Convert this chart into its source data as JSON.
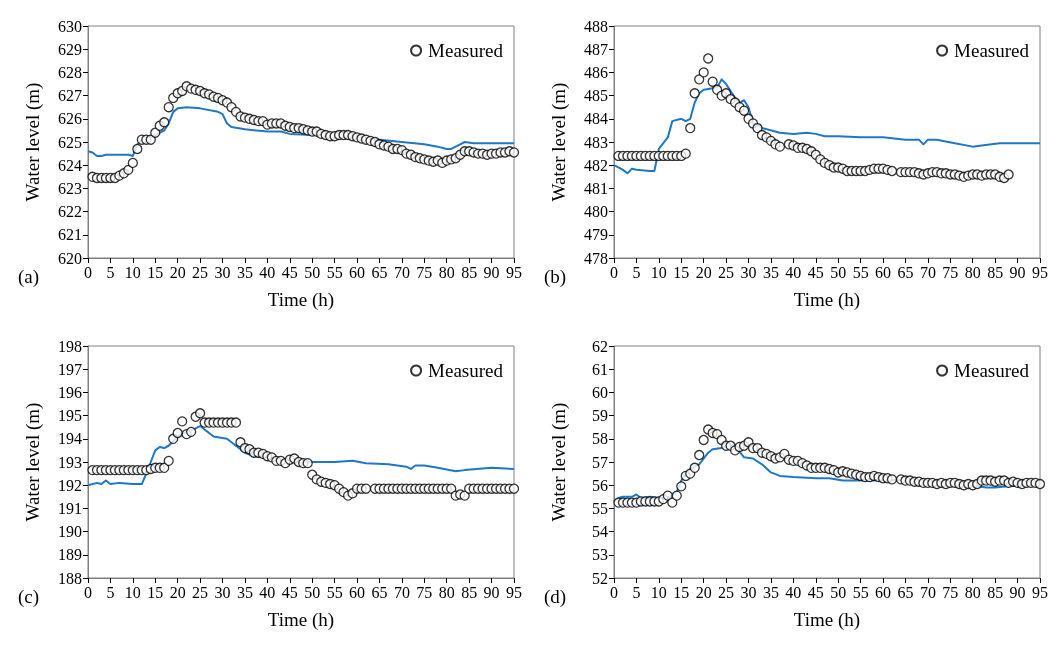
{
  "chart_data": [
    {
      "type": "line",
      "xlabel": "Time (h)",
      "ylabel": "Water level (m)",
      "annotations": [
        "(a)"
      ],
      "xlim": [
        0,
        95
      ],
      "xticks": [
        0,
        5,
        10,
        15,
        20,
        25,
        30,
        35,
        40,
        45,
        50,
        55,
        60,
        65,
        70,
        75,
        80,
        85,
        90,
        95
      ],
      "ylim": [
        620,
        630
      ],
      "yticks": [
        620,
        621,
        622,
        623,
        624,
        625,
        626,
        627,
        628,
        629,
        630
      ],
      "legend": "top right",
      "grid": false,
      "series": [
        {
          "name": "Measured",
          "type": "scatter",
          "marker": "circle",
          "color": "#000000",
          "x": [
            1,
            2,
            3,
            4,
            5,
            6,
            7,
            8,
            9,
            10,
            11,
            12,
            13,
            14,
            15,
            16,
            17,
            18,
            19,
            20,
            21,
            22,
            23,
            24,
            25,
            26,
            27,
            28,
            29,
            30,
            31,
            32,
            33,
            34,
            35,
            36,
            37,
            38,
            39,
            40,
            41,
            42,
            43,
            44,
            45,
            46,
            47,
            48,
            49,
            50,
            51,
            52,
            53,
            54,
            55,
            56,
            57,
            58,
            59,
            60,
            61,
            62,
            63,
            64,
            65,
            66,
            67,
            68,
            69,
            70,
            71,
            72,
            73,
            74,
            75,
            76,
            77,
            78,
            79,
            80,
            81,
            82,
            83,
            84,
            85,
            86,
            87,
            88,
            89,
            90,
            91,
            92,
            93,
            94,
            95
          ],
          "values": [
            623.5,
            623.45,
            623.45,
            623.45,
            623.45,
            623.45,
            623.55,
            623.65,
            623.8,
            624.1,
            624.7,
            625.1,
            625.1,
            625.1,
            625.4,
            625.7,
            625.85,
            626.5,
            626.9,
            627.1,
            627.2,
            627.4,
            627.3,
            627.25,
            627.2,
            627.1,
            627.05,
            626.95,
            626.9,
            626.8,
            626.7,
            626.5,
            626.3,
            626.1,
            626.05,
            626.0,
            625.95,
            625.9,
            625.9,
            625.75,
            625.8,
            625.8,
            625.8,
            625.7,
            625.65,
            625.6,
            625.6,
            625.55,
            625.5,
            625.45,
            625.45,
            625.35,
            625.3,
            625.25,
            625.25,
            625.3,
            625.3,
            625.3,
            625.25,
            625.2,
            625.15,
            625.1,
            625.05,
            625.0,
            624.9,
            624.85,
            624.8,
            624.7,
            624.7,
            624.65,
            624.5,
            624.45,
            624.35,
            624.3,
            624.25,
            624.2,
            624.15,
            624.2,
            624.1,
            624.2,
            624.25,
            624.3,
            624.45,
            624.6,
            624.6,
            624.55,
            624.5,
            624.5,
            624.45,
            624.5,
            624.5,
            624.55,
            624.55,
            624.6,
            624.55
          ]
        },
        {
          "type": "line",
          "marker": "none",
          "line_style": "solid",
          "color": "#1f77c8",
          "x": [
            0,
            1,
            2,
            3,
            4,
            9,
            10,
            11,
            12,
            15,
            17,
            18,
            19,
            20,
            22,
            25,
            29,
            30,
            31,
            32,
            35,
            40,
            43,
            45,
            50,
            55,
            60,
            65,
            70,
            75,
            78,
            80,
            81,
            83,
            84,
            86,
            95
          ],
          "values": [
            624.6,
            624.55,
            624.4,
            624.4,
            624.45,
            624.45,
            624.4,
            624.9,
            625.1,
            625.3,
            625.5,
            625.8,
            626.3,
            626.45,
            626.5,
            626.45,
            626.3,
            626.2,
            625.8,
            625.65,
            625.55,
            625.45,
            625.45,
            625.35,
            625.3,
            625.25,
            625.2,
            625.1,
            625.0,
            624.9,
            624.8,
            624.7,
            624.7,
            624.9,
            625.0,
            624.95,
            624.95
          ]
        }
      ]
    },
    {
      "type": "line",
      "xlabel": "Time (h)",
      "ylabel": "Water level (m)",
      "annotations": [
        "(b)"
      ],
      "xlim": [
        0,
        95
      ],
      "xticks": [
        0,
        5,
        10,
        15,
        20,
        25,
        30,
        35,
        40,
        45,
        50,
        55,
        60,
        65,
        70,
        75,
        80,
        85,
        90,
        95
      ],
      "ylim": [
        478,
        488
      ],
      "yticks": [
        478,
        479,
        480,
        481,
        482,
        483,
        484,
        485,
        486,
        487,
        488
      ],
      "legend": "top right",
      "grid": false,
      "series": [
        {
          "name": "Measured",
          "type": "scatter",
          "marker": "circle",
          "color": "#000000",
          "x": [
            1,
            2,
            3,
            4,
            5,
            6,
            7,
            8,
            9,
            10,
            11,
            12,
            13,
            14,
            15,
            16,
            17,
            18,
            19,
            20,
            21,
            22,
            23,
            24,
            25,
            26,
            27,
            28,
            29,
            30,
            31,
            32,
            33,
            34,
            35,
            36,
            37,
            39,
            40,
            41,
            42,
            43,
            44,
            45,
            46,
            47,
            48,
            49,
            50,
            51,
            52,
            53,
            54,
            55,
            56,
            57,
            58,
            59,
            60,
            61,
            62,
            64,
            65,
            66,
            67,
            68,
            69,
            70,
            71,
            72,
            73,
            74,
            75,
            76,
            77,
            78,
            79,
            80,
            81,
            82,
            83,
            84,
            85,
            86,
            87,
            88
          ],
          "values": [
            482.4,
            482.4,
            482.4,
            482.4,
            482.4,
            482.4,
            482.4,
            482.4,
            482.4,
            482.4,
            482.4,
            482.4,
            482.4,
            482.4,
            482.4,
            482.5,
            483.6,
            485.1,
            485.7,
            486.0,
            486.6,
            485.6,
            485.25,
            485.0,
            485.1,
            484.85,
            484.7,
            484.5,
            484.35,
            484.0,
            483.8,
            483.6,
            483.3,
            483.2,
            483.05,
            482.9,
            482.8,
            482.9,
            482.85,
            482.75,
            482.75,
            482.7,
            482.6,
            482.45,
            482.25,
            482.1,
            482.0,
            481.9,
            481.9,
            481.85,
            481.75,
            481.75,
            481.75,
            481.75,
            481.75,
            481.8,
            481.85,
            481.85,
            481.85,
            481.8,
            481.75,
            481.7,
            481.7,
            481.7,
            481.7,
            481.65,
            481.6,
            481.65,
            481.7,
            481.7,
            481.65,
            481.65,
            481.6,
            481.6,
            481.55,
            481.5,
            481.55,
            481.6,
            481.6,
            481.55,
            481.6,
            481.6,
            481.6,
            481.5,
            481.45,
            481.6
          ]
        },
        {
          "type": "line",
          "marker": "none",
          "line_style": "solid",
          "color": "#1f77c8",
          "x": [
            0,
            2,
            3,
            4,
            5,
            8,
            9,
            10,
            12,
            13,
            15,
            16,
            17,
            18,
            19,
            20,
            23,
            24,
            25,
            27,
            28,
            29,
            30,
            31,
            32,
            33,
            37,
            40,
            43,
            45,
            47,
            50,
            55,
            60,
            65,
            68,
            69,
            70,
            72,
            76,
            80,
            82,
            86,
            88,
            95
          ],
          "values": [
            482.0,
            481.8,
            481.65,
            481.85,
            481.8,
            481.75,
            481.75,
            482.7,
            483.2,
            483.9,
            484.0,
            483.9,
            484.0,
            484.7,
            485.1,
            485.25,
            485.35,
            485.7,
            485.5,
            484.9,
            484.7,
            484.8,
            484.5,
            483.8,
            483.75,
            483.6,
            483.4,
            483.35,
            483.4,
            483.35,
            483.25,
            483.25,
            483.2,
            483.2,
            483.1,
            483.1,
            482.9,
            483.1,
            483.1,
            482.95,
            482.8,
            482.85,
            482.95,
            482.95,
            482.95
          ]
        }
      ]
    },
    {
      "type": "line",
      "xlabel": "Time (h)",
      "ylabel": "Water level (m)",
      "annotations": [
        "(c)"
      ],
      "xlim": [
        0,
        95
      ],
      "xticks": [
        0,
        5,
        10,
        15,
        20,
        25,
        30,
        35,
        40,
        45,
        50,
        55,
        60,
        65,
        70,
        75,
        80,
        85,
        90,
        95
      ],
      "ylim": [
        188,
        198
      ],
      "yticks": [
        188,
        189,
        190,
        191,
        192,
        193,
        194,
        195,
        196,
        197,
        198
      ],
      "legend": "top right",
      "grid": false,
      "series": [
        {
          "name": "Measured",
          "type": "scatter",
          "marker": "circle",
          "color": "#000000",
          "x": [
            1,
            2,
            3,
            4,
            5,
            6,
            7,
            8,
            9,
            10,
            11,
            12,
            13,
            14,
            15,
            16,
            17,
            18,
            19,
            20,
            21,
            22,
            23,
            24,
            25,
            26,
            27,
            28,
            29,
            30,
            31,
            32,
            33,
            34,
            35,
            36,
            37,
            38,
            39,
            40,
            41,
            42,
            43,
            44,
            45,
            46,
            47,
            48,
            49,
            50,
            51,
            52,
            53,
            54,
            55,
            56,
            57,
            58,
            59,
            60,
            61,
            62,
            64,
            65,
            66,
            67,
            68,
            69,
            70,
            71,
            72,
            73,
            74,
            75,
            76,
            77,
            78,
            79,
            80,
            81,
            82,
            83,
            84,
            85,
            86,
            87,
            88,
            89,
            90,
            91,
            92,
            93,
            94,
            95
          ],
          "values": [
            192.65,
            192.65,
            192.65,
            192.65,
            192.65,
            192.65,
            192.65,
            192.65,
            192.65,
            192.65,
            192.65,
            192.65,
            192.65,
            192.7,
            192.75,
            192.75,
            192.75,
            193.05,
            194.0,
            194.25,
            194.75,
            194.2,
            194.3,
            194.95,
            195.1,
            194.7,
            194.7,
            194.7,
            194.7,
            194.7,
            194.7,
            194.7,
            194.7,
            193.85,
            193.6,
            193.55,
            193.4,
            193.4,
            193.35,
            193.25,
            193.2,
            193.05,
            193.05,
            192.95,
            193.1,
            193.15,
            193.0,
            192.95,
            192.95,
            192.45,
            192.25,
            192.15,
            192.1,
            192.05,
            192.0,
            191.85,
            191.7,
            191.55,
            191.65,
            191.85,
            191.85,
            191.85,
            191.85,
            191.85,
            191.85,
            191.85,
            191.85,
            191.85,
            191.85,
            191.85,
            191.85,
            191.85,
            191.85,
            191.85,
            191.85,
            191.85,
            191.85,
            191.85,
            191.85,
            191.85,
            191.55,
            191.6,
            191.55,
            191.85,
            191.85,
            191.85,
            191.85,
            191.85,
            191.85,
            191.85,
            191.85,
            191.85,
            191.85,
            191.85
          ]
        },
        {
          "type": "line",
          "marker": "none",
          "line_style": "solid",
          "color": "#1f77c8",
          "x": [
            0,
            2,
            3,
            4,
            5,
            7,
            10,
            12,
            13,
            14,
            15,
            16,
            17,
            18,
            20,
            22,
            24,
            25,
            26,
            28,
            31,
            33,
            35,
            37,
            40,
            43,
            45,
            47,
            50,
            55,
            59,
            62,
            67,
            71,
            72,
            73,
            75,
            78,
            82,
            84,
            90,
            95
          ],
          "values": [
            192.0,
            192.1,
            192.05,
            192.2,
            192.05,
            192.1,
            192.05,
            192.05,
            192.5,
            193.0,
            193.5,
            193.65,
            193.6,
            193.7,
            194.1,
            194.3,
            194.45,
            194.55,
            194.4,
            194.1,
            194.0,
            193.7,
            193.4,
            193.25,
            193.2,
            193.1,
            193.05,
            193.0,
            193.0,
            193.0,
            193.05,
            192.95,
            192.9,
            192.8,
            192.7,
            192.85,
            192.85,
            192.75,
            192.6,
            192.65,
            192.75,
            192.7
          ]
        }
      ]
    },
    {
      "type": "line",
      "xlabel": "Time (h)",
      "ylabel": "Water level (m)",
      "annotations": [
        "(d)"
      ],
      "xlim": [
        0,
        95
      ],
      "xticks": [
        0,
        5,
        10,
        15,
        20,
        25,
        30,
        35,
        40,
        45,
        50,
        55,
        60,
        65,
        70,
        75,
        80,
        85,
        90,
        95
      ],
      "ylim": [
        52,
        62
      ],
      "yticks": [
        52,
        53,
        54,
        55,
        56,
        57,
        58,
        59,
        60,
        61,
        62
      ],
      "legend": "top right",
      "grid": false,
      "series": [
        {
          "name": "Measured",
          "type": "scatter",
          "marker": "circle",
          "color": "#000000",
          "x": [
            1,
            2,
            3,
            4,
            5,
            6,
            7,
            8,
            9,
            10,
            11,
            12,
            13,
            14,
            15,
            16,
            17,
            18,
            19,
            20,
            21,
            22,
            23,
            24,
            25,
            26,
            27,
            28,
            29,
            30,
            31,
            32,
            33,
            34,
            35,
            36,
            37,
            38,
            39,
            40,
            41,
            42,
            43,
            44,
            45,
            46,
            47,
            48,
            49,
            50,
            51,
            52,
            53,
            54,
            55,
            56,
            57,
            58,
            59,
            60,
            61,
            62,
            64,
            65,
            66,
            67,
            68,
            69,
            70,
            71,
            72,
            73,
            74,
            75,
            76,
            77,
            78,
            79,
            80,
            81,
            82,
            83,
            84,
            85,
            86,
            87,
            88,
            89,
            90,
            91,
            92,
            93,
            94,
            95
          ],
          "values": [
            55.25,
            55.25,
            55.25,
            55.25,
            55.25,
            55.3,
            55.3,
            55.3,
            55.3,
            55.3,
            55.4,
            55.55,
            55.25,
            55.55,
            55.95,
            56.4,
            56.5,
            56.75,
            57.3,
            57.95,
            58.4,
            58.25,
            58.2,
            57.95,
            57.7,
            57.7,
            57.5,
            57.65,
            57.7,
            57.85,
            57.6,
            57.6,
            57.4,
            57.35,
            57.25,
            57.15,
            57.2,
            57.35,
            57.1,
            57.05,
            57.05,
            56.95,
            56.85,
            56.75,
            56.75,
            56.75,
            56.75,
            56.7,
            56.65,
            56.55,
            56.6,
            56.55,
            56.5,
            56.45,
            56.4,
            56.35,
            56.35,
            56.4,
            56.35,
            56.3,
            56.3,
            56.25,
            56.25,
            56.2,
            56.2,
            56.15,
            56.15,
            56.1,
            56.1,
            56.1,
            56.05,
            56.1,
            56.05,
            56.1,
            56.1,
            56.05,
            56.0,
            56.05,
            56.0,
            56.05,
            56.2,
            56.2,
            56.2,
            56.15,
            56.2,
            56.2,
            56.1,
            56.15,
            56.1,
            56.05,
            56.1,
            56.1,
            56.1,
            56.05
          ]
        },
        {
          "type": "line",
          "marker": "none",
          "line_style": "solid",
          "color": "#1f77c8",
          "x": [
            0,
            1,
            2,
            4,
            5,
            6,
            8,
            10,
            12,
            14,
            15,
            17,
            19,
            21,
            22,
            24,
            26,
            27,
            28,
            29,
            31,
            33,
            35,
            37,
            40,
            45,
            48,
            51,
            55,
            58,
            60,
            65,
            70,
            75,
            80,
            83,
            85,
            90,
            95
          ],
          "values": [
            55.3,
            55.45,
            55.5,
            55.5,
            55.6,
            55.45,
            55.5,
            55.45,
            55.45,
            55.7,
            56.2,
            56.7,
            56.9,
            57.4,
            57.55,
            57.6,
            57.75,
            57.65,
            57.45,
            57.2,
            57.15,
            56.9,
            56.55,
            56.4,
            56.35,
            56.3,
            56.3,
            56.2,
            56.2,
            56.2,
            56.25,
            56.2,
            56.15,
            56.1,
            56.0,
            55.9,
            55.9,
            56.0,
            56.05
          ]
        }
      ]
    }
  ]
}
